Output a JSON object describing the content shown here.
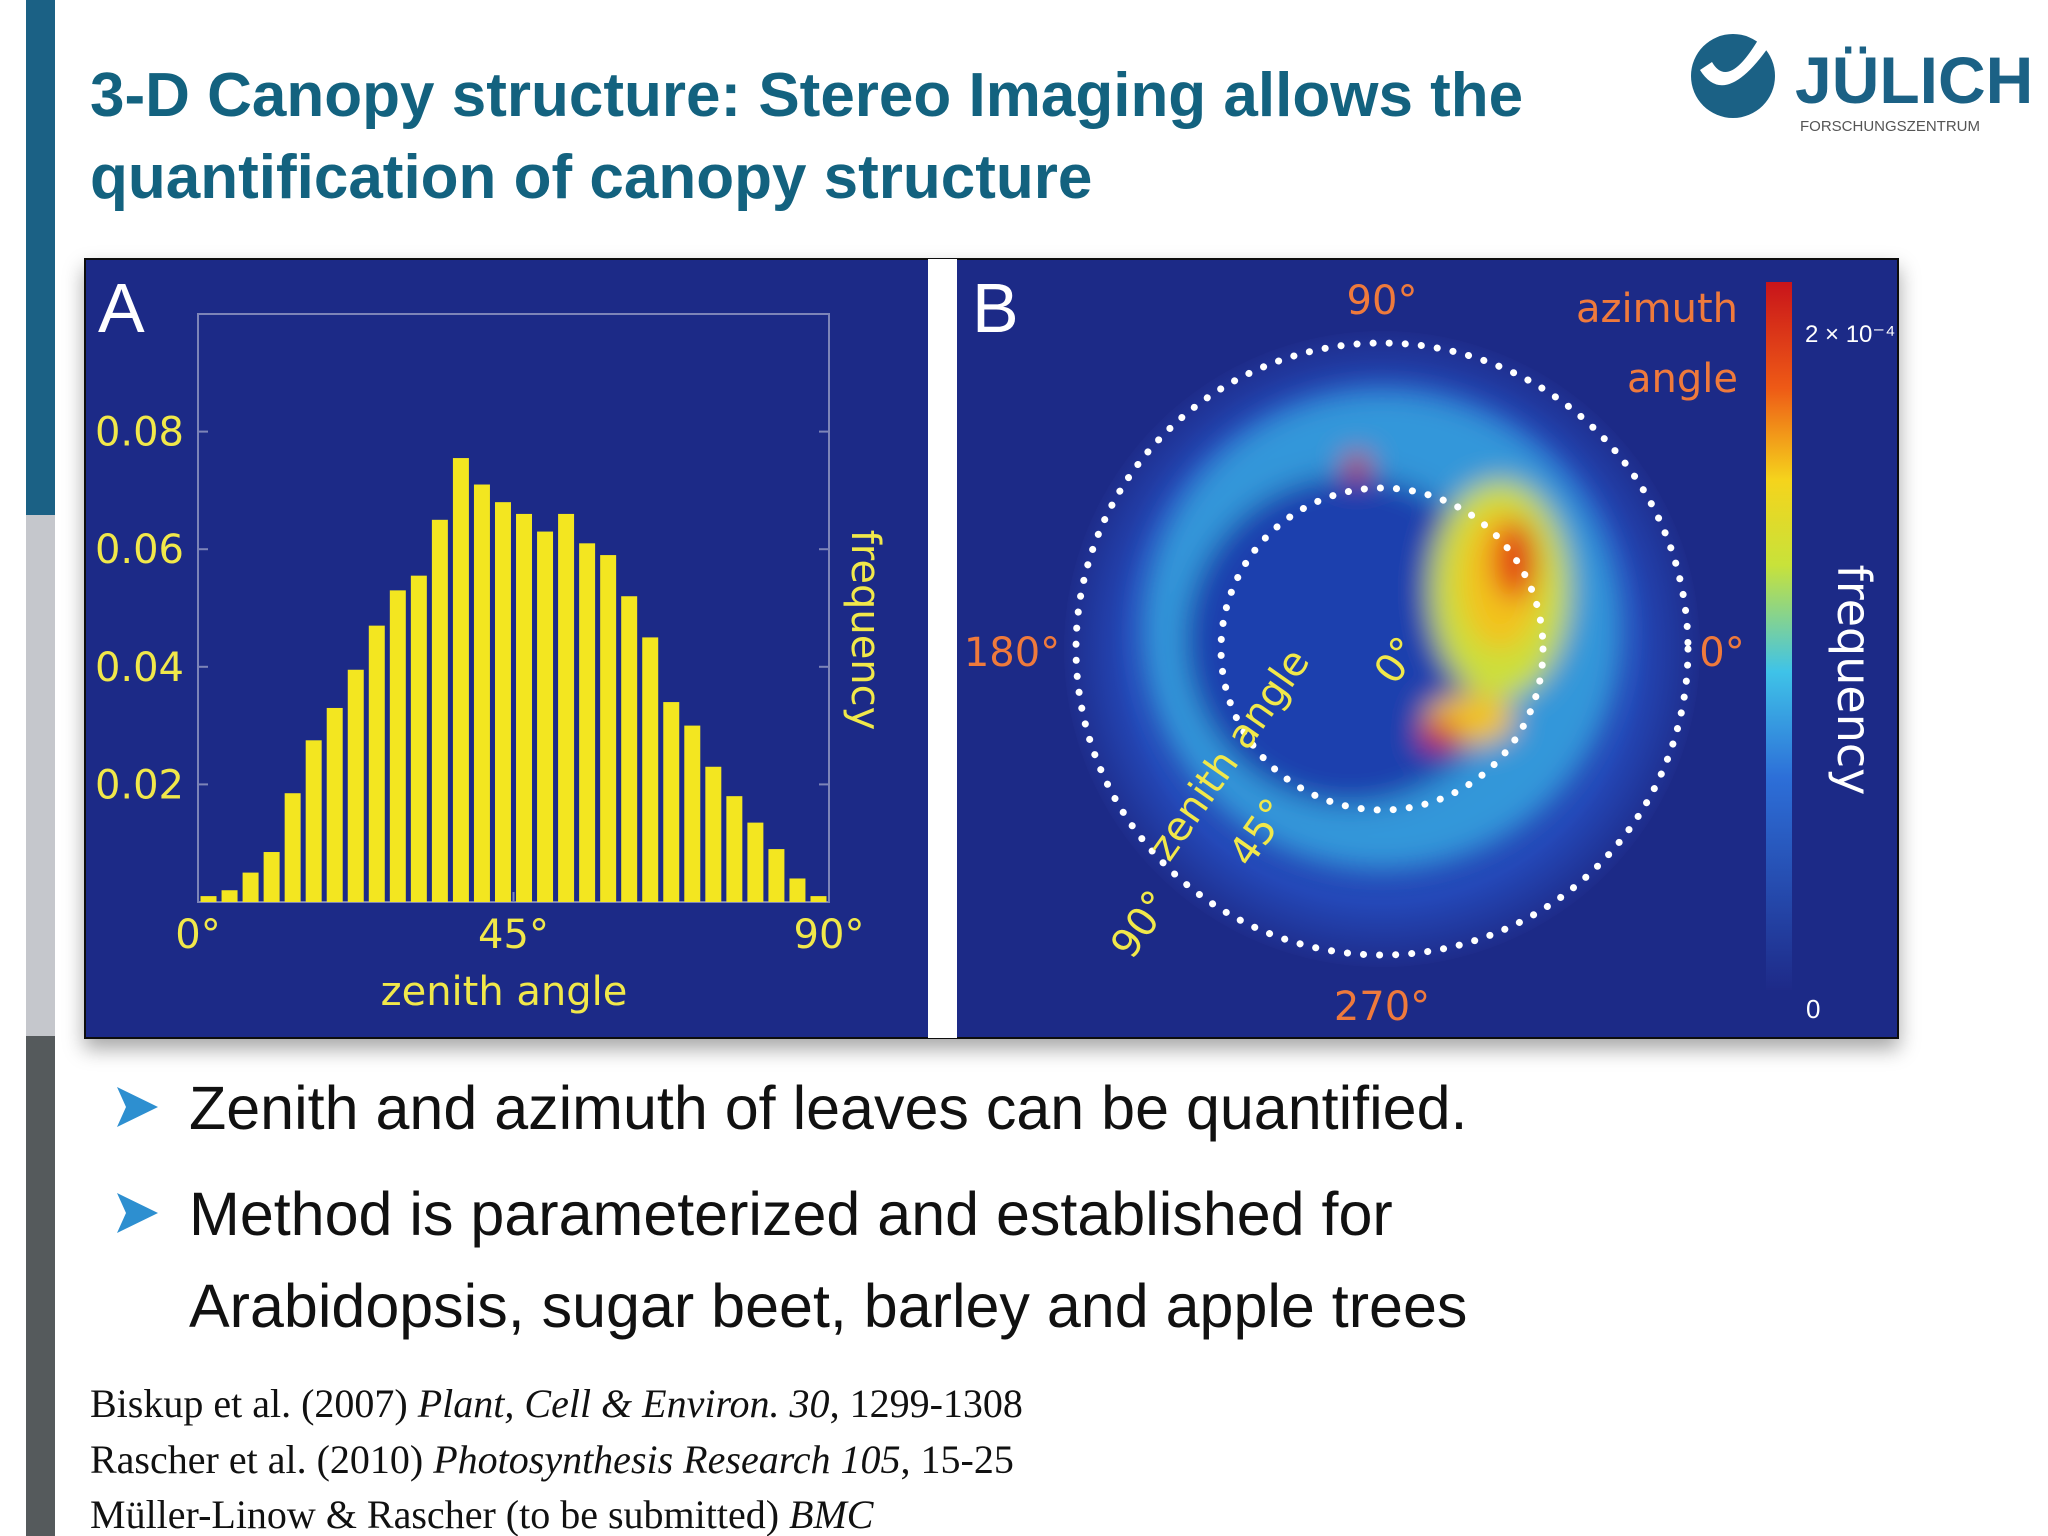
{
  "header": {
    "title_lines": [
      "3-D Canopy structure: Stereo Imaging allows the",
      "quantification of canopy structure"
    ],
    "logo": {
      "name": "JÜLICH",
      "subtitle": "FORSCHUNGSZENTRUM"
    }
  },
  "figure": {
    "panel_a": {
      "label": "A",
      "type": "histogram",
      "color": "#f3e620",
      "bins": [
        0,
        3,
        6,
        9,
        12,
        15,
        18,
        21,
        24,
        27,
        30,
        33,
        36,
        39,
        42,
        45,
        48,
        51,
        54,
        57,
        60,
        63,
        66,
        69,
        72,
        75,
        78,
        81,
        84,
        87,
        90
      ],
      "values": [
        0.001,
        0.002,
        0.005,
        0.0085,
        0.0185,
        0.0275,
        0.033,
        0.0395,
        0.047,
        0.053,
        0.0555,
        0.065,
        0.0755,
        0.071,
        0.068,
        0.066,
        0.063,
        0.066,
        0.061,
        0.059,
        0.052,
        0.045,
        0.034,
        0.03,
        0.023,
        0.018,
        0.0135,
        0.009,
        0.004,
        0.001
      ],
      "xlim": [
        0,
        90
      ],
      "ylim": [
        0,
        0.1
      ],
      "xticks": [
        {
          "value": 0,
          "label": "0°"
        },
        {
          "value": 45,
          "label": "45°"
        },
        {
          "value": 90,
          "label": "90°"
        }
      ],
      "yticks": [
        0.02,
        0.04,
        0.06,
        0.08
      ],
      "xlabel": "zenith angle",
      "ylabel": "frequency"
    },
    "panel_b": {
      "label": "B",
      "azimuth_title_lines": [
        "azimuth",
        "angle"
      ],
      "azimuth_ticks": [
        "90°",
        "180°",
        "0°",
        "270°"
      ],
      "zenith_title": "zenith angle",
      "zenith_ticks": [
        "0°",
        "45°",
        "90°"
      ],
      "colorbar": {
        "max_label": "2 × 10⁻⁴",
        "min_label": "0",
        "title": "frequency"
      }
    }
  },
  "bullets": [
    [
      "Zenith and azimuth of leaves can be quantified."
    ],
    [
      "Method is parameterized and established for",
      "Arabidopsis, sugar beet, barley and apple trees"
    ]
  ],
  "references": [
    {
      "authors": "Biskup et al. (2007)",
      "journal": "Plant, Cell & Environ. 30",
      "pages": ", 1299-1308"
    },
    {
      "authors": "Rascher et al. (2010)",
      "journal": "Photosynthesis Research 105",
      "pages": ", 15-25"
    },
    {
      "authors": "Müller-Linow & Rascher (to be submitted)",
      "journal": "BMC"
    }
  ]
}
